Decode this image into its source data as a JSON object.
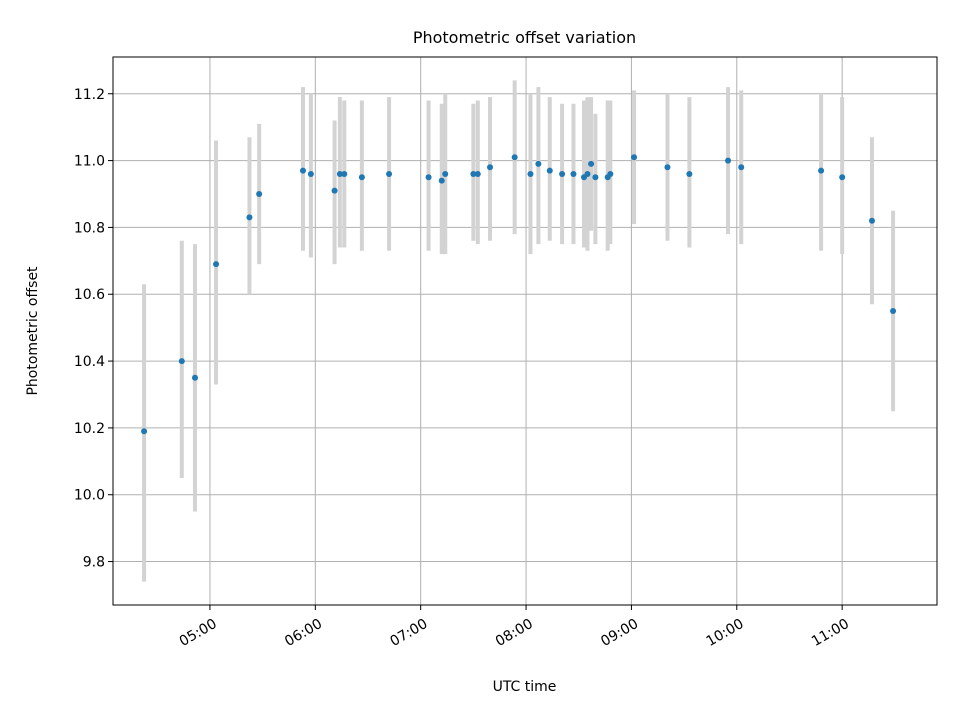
{
  "chart_data": {
    "type": "scatter",
    "title": "Photometric offset variation",
    "xlabel": "UTC time",
    "ylabel": "Photometric offset",
    "x_unit": "hours UTC",
    "xlim": [
      4.08,
      11.9
    ],
    "ylim": [
      9.67,
      11.31
    ],
    "x_ticks": [
      5,
      6,
      7,
      8,
      9,
      10,
      11
    ],
    "x_tick_labels": [
      "05:00",
      "06:00",
      "07:00",
      "08:00",
      "09:00",
      "10:00",
      "11:00"
    ],
    "y_ticks": [
      9.8,
      10.0,
      10.2,
      10.4,
      10.6,
      10.8,
      11.0,
      11.2
    ],
    "y_tick_labels": [
      "9.8",
      "10.0",
      "10.2",
      "10.4",
      "10.6",
      "10.8",
      "11.0",
      "11.2"
    ],
    "grid": true,
    "point_color": "#1f77b4",
    "errorbar_color": "#d3d3d3",
    "series": [
      {
        "points": [
          {
            "x": 4.375,
            "y": 10.19,
            "lo": 9.74,
            "hi": 10.63
          },
          {
            "x": 4.733,
            "y": 10.4,
            "lo": 10.05,
            "hi": 10.76
          },
          {
            "x": 4.858,
            "y": 10.35,
            "lo": 9.95,
            "hi": 10.75
          },
          {
            "x": 5.058,
            "y": 10.69,
            "lo": 10.33,
            "hi": 11.06
          },
          {
            "x": 5.375,
            "y": 10.83,
            "lo": 10.6,
            "hi": 11.07
          },
          {
            "x": 5.467,
            "y": 10.9,
            "lo": 10.69,
            "hi": 11.11
          },
          {
            "x": 5.883,
            "y": 10.97,
            "lo": 10.73,
            "hi": 11.22
          },
          {
            "x": 5.958,
            "y": 10.96,
            "lo": 10.71,
            "hi": 11.2
          },
          {
            "x": 6.183,
            "y": 10.91,
            "lo": 10.69,
            "hi": 11.12
          },
          {
            "x": 6.233,
            "y": 10.96,
            "lo": 10.74,
            "hi": 11.19
          },
          {
            "x": 6.275,
            "y": 10.96,
            "lo": 10.74,
            "hi": 11.18
          },
          {
            "x": 6.442,
            "y": 10.95,
            "lo": 10.73,
            "hi": 11.18
          },
          {
            "x": 6.7,
            "y": 10.96,
            "lo": 10.73,
            "hi": 11.19
          },
          {
            "x": 7.075,
            "y": 10.95,
            "lo": 10.73,
            "hi": 11.18
          },
          {
            "x": 7.2,
            "y": 10.94,
            "lo": 10.72,
            "hi": 11.17
          },
          {
            "x": 7.233,
            "y": 10.96,
            "lo": 10.72,
            "hi": 11.2
          },
          {
            "x": 7.5,
            "y": 10.96,
            "lo": 10.76,
            "hi": 11.17
          },
          {
            "x": 7.542,
            "y": 10.96,
            "lo": 10.75,
            "hi": 11.18
          },
          {
            "x": 7.658,
            "y": 10.98,
            "lo": 10.76,
            "hi": 11.19
          },
          {
            "x": 7.892,
            "y": 11.01,
            "lo": 10.78,
            "hi": 11.24
          },
          {
            "x": 8.042,
            "y": 10.96,
            "lo": 10.72,
            "hi": 11.2
          },
          {
            "x": 8.117,
            "y": 10.99,
            "lo": 10.75,
            "hi": 11.22
          },
          {
            "x": 8.225,
            "y": 10.97,
            "lo": 10.76,
            "hi": 11.19
          },
          {
            "x": 8.342,
            "y": 10.96,
            "lo": 10.75,
            "hi": 11.17
          },
          {
            "x": 8.45,
            "y": 10.96,
            "lo": 10.75,
            "hi": 11.17
          },
          {
            "x": 8.55,
            "y": 10.95,
            "lo": 10.74,
            "hi": 11.18
          },
          {
            "x": 8.583,
            "y": 10.96,
            "lo": 10.73,
            "hi": 11.19
          },
          {
            "x": 8.617,
            "y": 10.99,
            "lo": 10.79,
            "hi": 11.19
          },
          {
            "x": 8.658,
            "y": 10.95,
            "lo": 10.75,
            "hi": 11.14
          },
          {
            "x": 8.775,
            "y": 10.95,
            "lo": 10.73,
            "hi": 11.18
          },
          {
            "x": 8.8,
            "y": 10.96,
            "lo": 10.75,
            "hi": 11.18
          },
          {
            "x": 9.025,
            "y": 11.01,
            "lo": 10.81,
            "hi": 11.21
          },
          {
            "x": 9.342,
            "y": 10.98,
            "lo": 10.76,
            "hi": 11.2
          },
          {
            "x": 9.55,
            "y": 10.96,
            "lo": 10.74,
            "hi": 11.19
          },
          {
            "x": 9.917,
            "y": 11.0,
            "lo": 10.78,
            "hi": 11.22
          },
          {
            "x": 10.042,
            "y": 10.98,
            "lo": 10.75,
            "hi": 11.21
          },
          {
            "x": 10.8,
            "y": 10.97,
            "lo": 10.73,
            "hi": 11.2
          },
          {
            "x": 11.0,
            "y": 10.95,
            "lo": 10.72,
            "hi": 11.19
          },
          {
            "x": 11.283,
            "y": 10.82,
            "lo": 10.57,
            "hi": 11.07
          },
          {
            "x": 11.483,
            "y": 10.55,
            "lo": 10.25,
            "hi": 10.85
          }
        ]
      }
    ]
  }
}
